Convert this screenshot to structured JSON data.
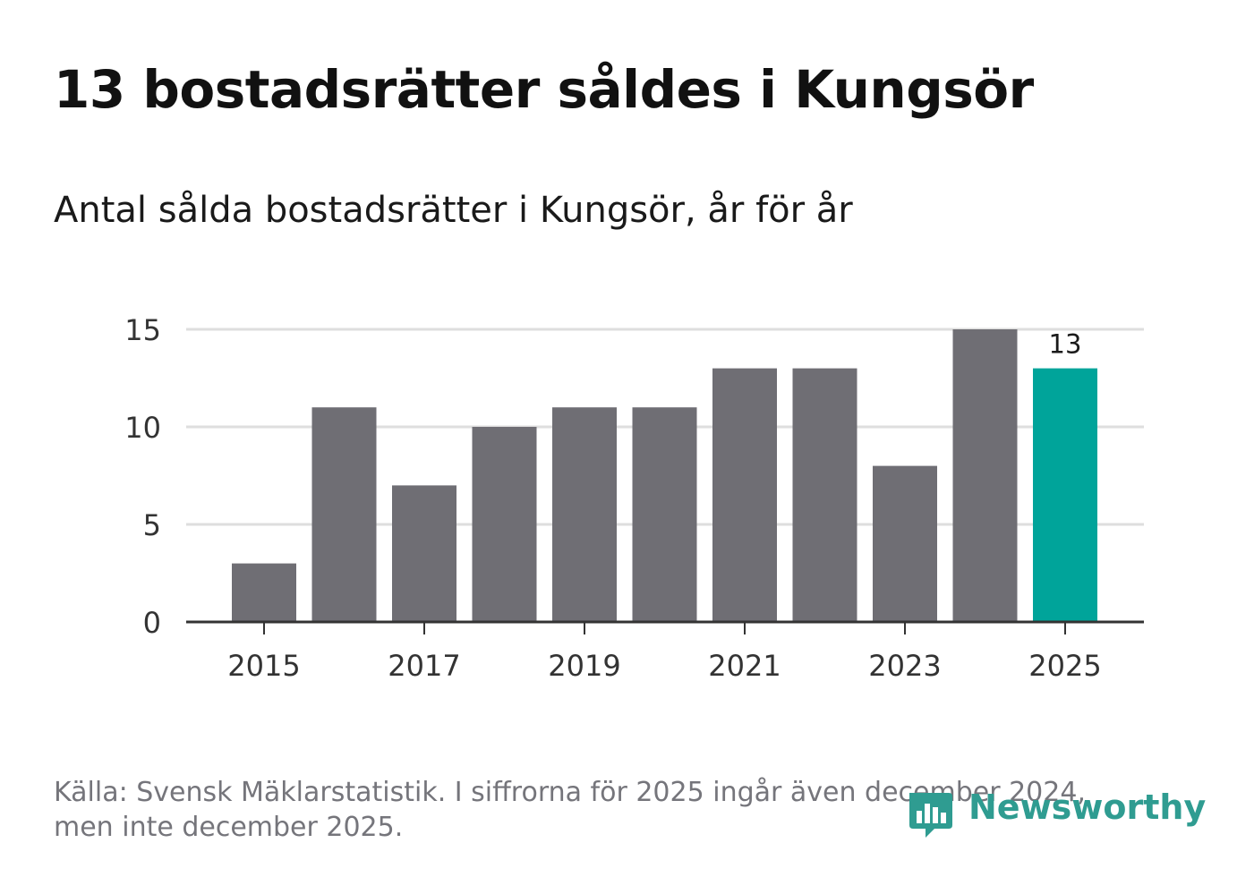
{
  "title": "13 bostadsrätter såldes i Kungsör",
  "subtitle": "Antal sålda bostadsrätter i Kungsör, år för år",
  "footnote": {
    "line1": "Källa: Svensk Mäklarstatistik. I siffrorna för 2025 ingår även december 2024,",
    "line2": "men inte december 2025."
  },
  "logo": {
    "text": "Newsworthy",
    "icon": "bar-chart-bubble-icon"
  },
  "colors": {
    "bar": "#6f6e74",
    "highlight": "#00a49a",
    "grid": "#dedede",
    "axis": "#333333",
    "tick_text": "#333333",
    "logo": "#2f9c91"
  },
  "chart_data": {
    "type": "bar",
    "title": "13 bostadsrätter såldes i Kungsör",
    "subtitle": "Antal sålda bostadsrätter i Kungsör, år för år",
    "categories": [
      "2015",
      "2016",
      "2017",
      "2018",
      "2019",
      "2020",
      "2021",
      "2022",
      "2023",
      "2024",
      "2025"
    ],
    "values": [
      3,
      11,
      7,
      10,
      11,
      11,
      13,
      13,
      8,
      15,
      13
    ],
    "highlight_index": 10,
    "data_labels": [
      {
        "index": 10,
        "text": "13"
      }
    ],
    "x_tick_labels": [
      "2015",
      "2017",
      "2019",
      "2021",
      "2023",
      "2025"
    ],
    "y_ticks": [
      0,
      5,
      10,
      15
    ],
    "ylim": [
      0,
      15
    ],
    "xlabel": "",
    "ylabel": "",
    "grid": true,
    "legend": "none"
  }
}
